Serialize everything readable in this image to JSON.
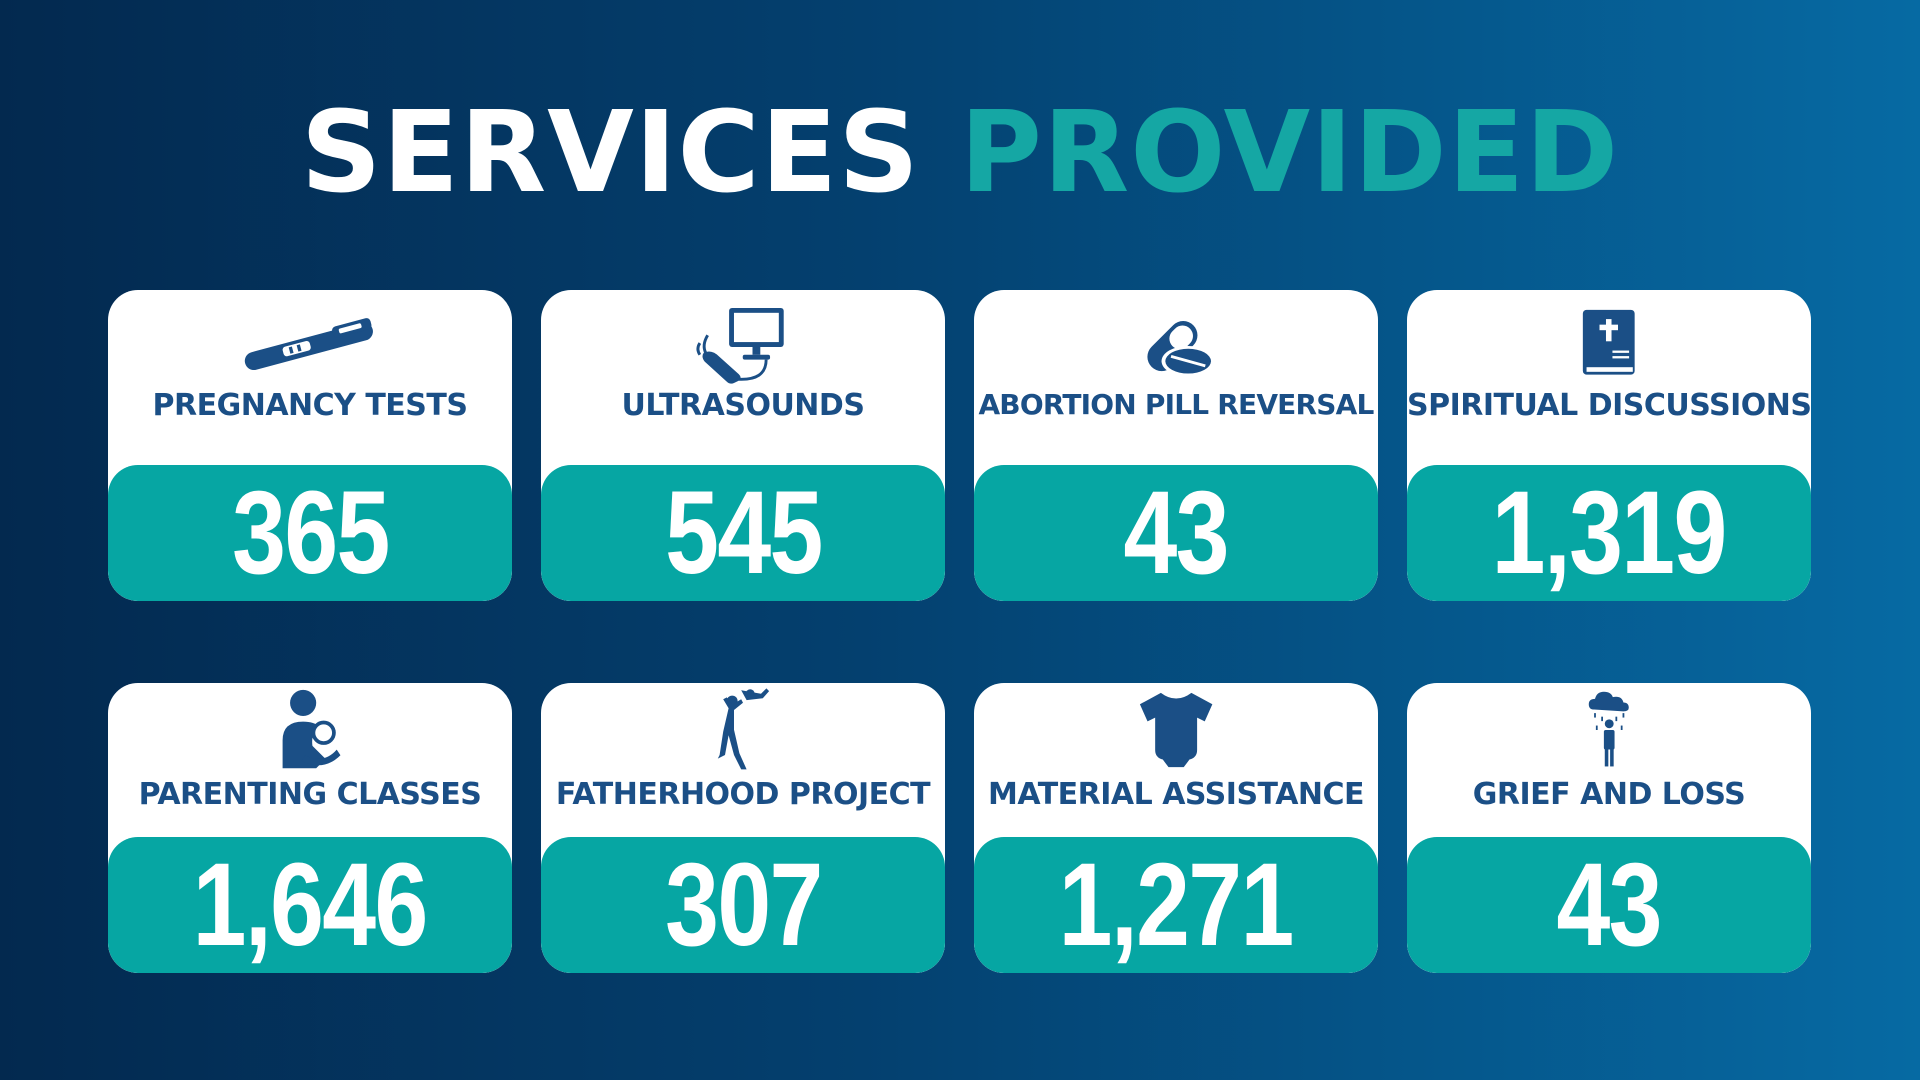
{
  "title": {
    "part1": "SERVICES",
    "part2": "PROVIDED"
  },
  "colors": {
    "accent": "#15a7a4",
    "band": "#06a6a3",
    "label": "#1b4f86",
    "icon": "#1b4f86"
  },
  "services": [
    {
      "label": "PREGNANCY TESTS",
      "value": "365",
      "icon": "pregnancy-test-icon"
    },
    {
      "label": "ULTRASOUNDS",
      "value": "545",
      "icon": "ultrasound-icon"
    },
    {
      "label": "ABORTION PILL REVERSAL",
      "value": "43",
      "icon": "pills-icon"
    },
    {
      "label": "SPIRITUAL DISCUSSIONS",
      "value": "1,319",
      "icon": "bible-icon"
    },
    {
      "label": "PARENTING CLASSES",
      "value": "1,646",
      "icon": "parent-child-icon"
    },
    {
      "label": "FATHERHOOD PROJECT",
      "value": "307",
      "icon": "father-child-icon"
    },
    {
      "label": "MATERIAL ASSISTANCE",
      "value": "1,271",
      "icon": "onesie-icon"
    },
    {
      "label": "GRIEF AND LOSS",
      "value": "43",
      "icon": "grief-cloud-icon"
    }
  ]
}
